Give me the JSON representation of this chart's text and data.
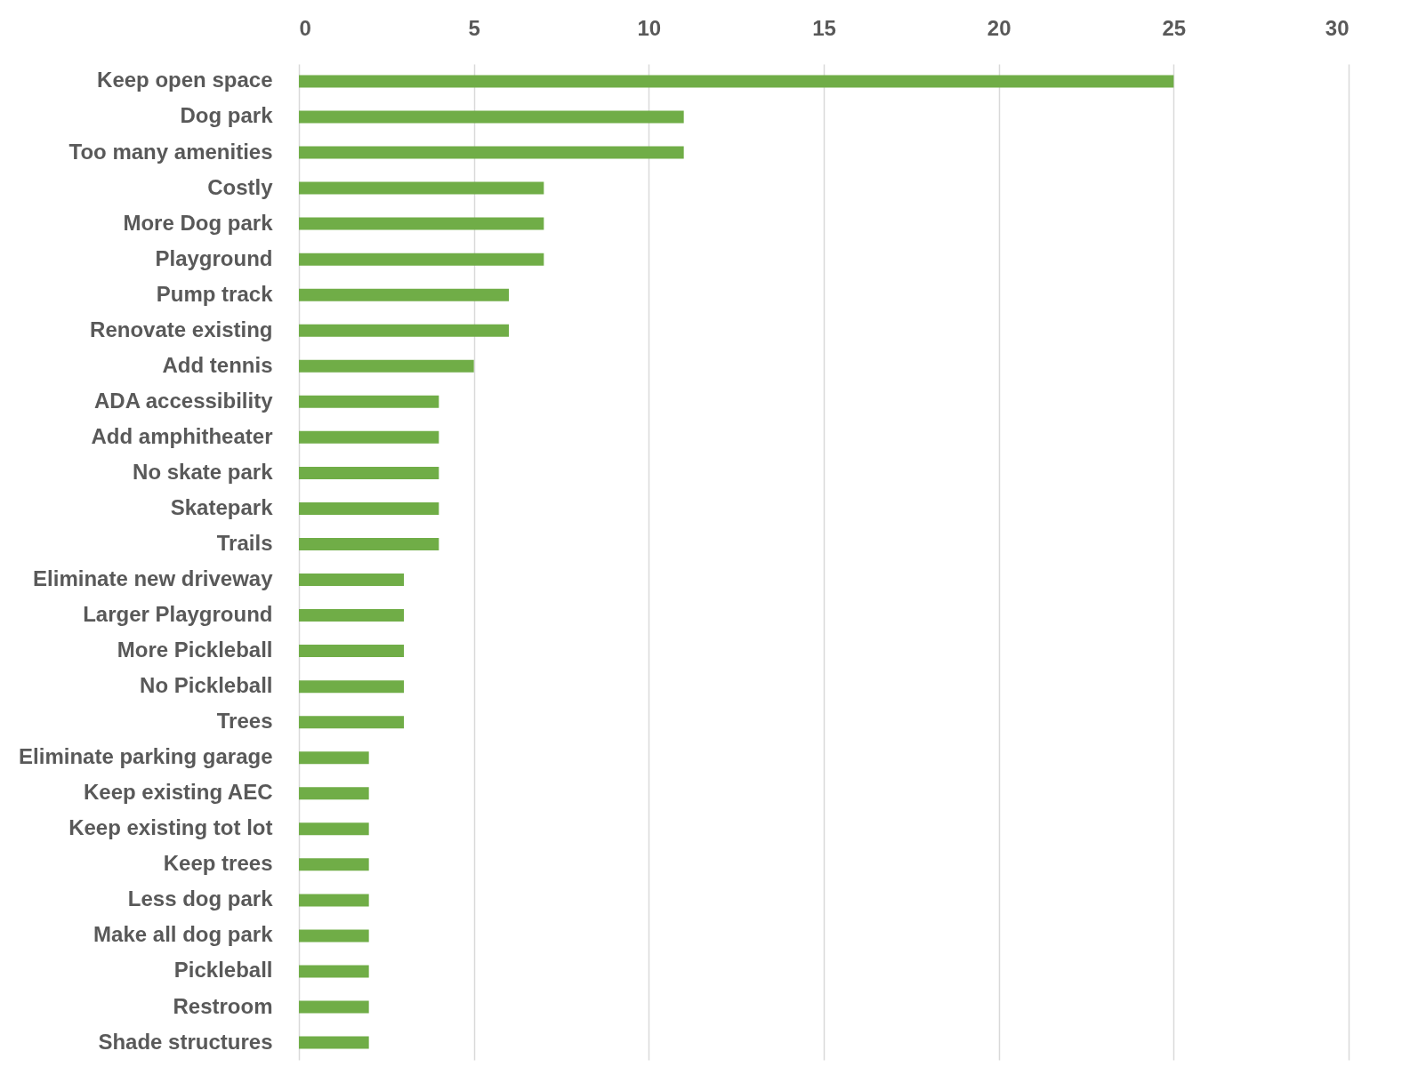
{
  "chart_data": {
    "type": "bar",
    "orientation": "horizontal",
    "categories": [
      "Keep open space",
      "Dog park",
      "Too many amenities",
      "Costly",
      "More Dog park",
      "Playground",
      "Pump track",
      "Renovate existing",
      "Add tennis",
      "ADA accessibility",
      "Add amphitheater",
      "No skate park",
      "Skatepark",
      "Trails",
      "Eliminate new driveway",
      "Larger Playground",
      "More Pickleball",
      "No Pickleball",
      "Trees",
      "Eliminate parking garage",
      "Keep existing AEC",
      "Keep existing tot lot",
      "Keep trees",
      "Less dog park",
      "Make all dog park",
      "Pickleball",
      "Restroom",
      "Shade structures"
    ],
    "values": [
      25,
      11,
      11,
      7,
      7,
      7,
      6,
      6,
      5,
      4,
      4,
      4,
      4,
      4,
      3,
      3,
      3,
      3,
      3,
      2,
      2,
      2,
      2,
      2,
      2,
      2,
      2,
      2
    ],
    "color": "#70ad47",
    "xlim": [
      0,
      30
    ],
    "xticks": [
      0,
      5,
      10,
      15,
      20,
      25,
      30
    ],
    "grid": true
  }
}
